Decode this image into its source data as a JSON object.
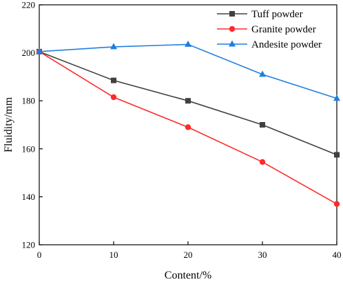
{
  "chart_data": {
    "type": "line",
    "title": "",
    "xlabel": "Content/%",
    "ylabel": "Fluidity/mm",
    "xlim": [
      0,
      40
    ],
    "ylim": [
      120,
      220
    ],
    "xticks": [
      0,
      10,
      20,
      30,
      40
    ],
    "yticks": [
      120,
      140,
      160,
      180,
      200,
      220
    ],
    "x": [
      0,
      10,
      20,
      30,
      40
    ],
    "grid": false,
    "legend_position": "top-right",
    "series": [
      {
        "name": "Tuff powder",
        "values": [
          200.5,
          188.5,
          180.0,
          170.0,
          157.5
        ],
        "color": "#404040",
        "marker": "square"
      },
      {
        "name": "Granite powder",
        "values": [
          200.5,
          181.5,
          169.0,
          154.5,
          137.0
        ],
        "color": "#ff2a2a",
        "marker": "circle"
      },
      {
        "name": "Andesite powder",
        "values": [
          200.5,
          202.5,
          203.5,
          191.0,
          181.0
        ],
        "color": "#1f7fe0",
        "marker": "triangle"
      }
    ]
  }
}
